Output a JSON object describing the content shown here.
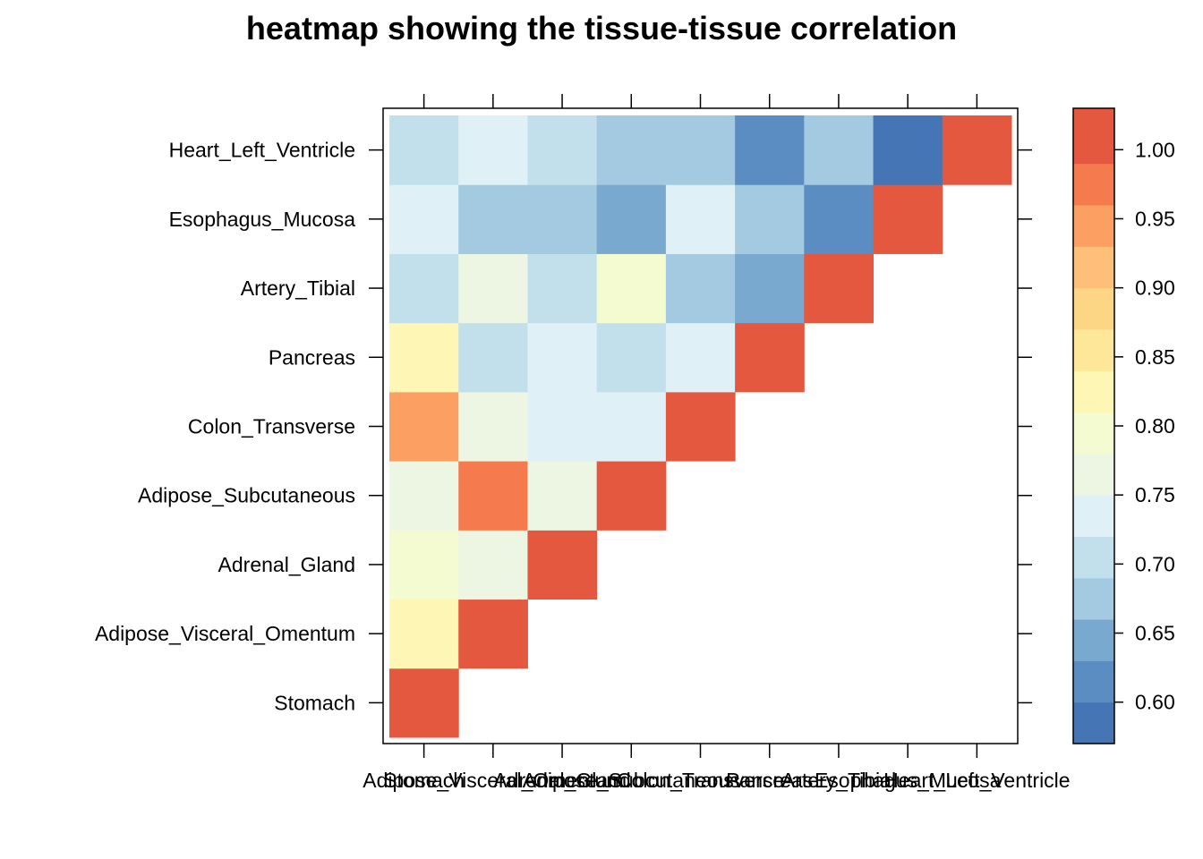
{
  "chart_data": {
    "type": "heatmap",
    "title": "heatmap showing the tissue-tissue correlation",
    "xlabel": "",
    "ylabel": "",
    "tissues": [
      "Stomach",
      "Adipose_Visceral_Omentum",
      "Adrenal_Gland",
      "Adipose_Subcutaneous",
      "Colon_Transverse",
      "Pancreas",
      "Artery_Tibial",
      "Esophagus_Mucosa",
      "Heart_Left_Ventricle"
    ],
    "x_tick_labels": [
      "Stomach",
      "Adipose_Visceral_Omentum",
      "Adrenal_Gland",
      "Adipose_Subcutaneous",
      "Colon_Transverse",
      "Pancreas",
      "Artery_Tibial",
      "Esophagus_Mucosa",
      "Heart_Left_Ventricle"
    ],
    "y_tick_labels": [
      "Stomach",
      "Adipose_Visceral_Omentum",
      "Adrenal_Gland",
      "Adipose_Subcutaneous",
      "Colon_Transverse",
      "Pancreas",
      "Artery_Tibial",
      "Esophagus_Mucosa",
      "Heart_Left_Ventricle"
    ],
    "values": [
      [
        1.0,
        null,
        null,
        null,
        null,
        null,
        null,
        null,
        null
      ],
      [
        0.82,
        1.0,
        null,
        null,
        null,
        null,
        null,
        null,
        null
      ],
      [
        0.78,
        0.76,
        1.0,
        null,
        null,
        null,
        null,
        null,
        null
      ],
      [
        0.76,
        0.96,
        0.76,
        1.0,
        null,
        null,
        null,
        null,
        null
      ],
      [
        0.93,
        0.76,
        0.73,
        0.73,
        1.0,
        null,
        null,
        null,
        null
      ],
      [
        0.82,
        0.7,
        0.73,
        0.7,
        0.73,
        1.0,
        null,
        null,
        null
      ],
      [
        0.7,
        0.76,
        0.7,
        0.78,
        0.68,
        0.65,
        1.0,
        null,
        null
      ],
      [
        0.73,
        0.68,
        0.68,
        0.65,
        0.73,
        0.68,
        0.62,
        1.0,
        null
      ],
      [
        0.7,
        0.73,
        0.7,
        0.68,
        0.68,
        0.62,
        0.68,
        0.59,
        1.0
      ]
    ],
    "colorbar": {
      "breaks": [
        0.57,
        0.6,
        0.63,
        0.66,
        0.69,
        0.72,
        0.75,
        0.78,
        0.81,
        0.84,
        0.87,
        0.9,
        0.93,
        0.96,
        0.99,
        1.03
      ],
      "colors": [
        "#4575B4",
        "#5B8DC2",
        "#7AA9D0",
        "#A3CAE1",
        "#C2DFEC",
        "#DFF1F7",
        "#ECF6E2",
        "#F4FBD1",
        "#FEF6B4",
        "#FEE799",
        "#FDD685",
        "#FDBF7A",
        "#FBA062",
        "#F57B4F",
        "#E55840",
        "#D73027"
      ],
      "ticks": [
        0.6,
        0.65,
        0.7,
        0.75,
        0.8,
        0.85,
        0.9,
        0.95,
        1.0
      ],
      "tick_labels": [
        "0.60",
        "0.65",
        "0.70",
        "0.75",
        "0.80",
        "0.85",
        "0.90",
        "0.95",
        "1.00"
      ],
      "range": [
        0.57,
        1.03
      ]
    }
  }
}
